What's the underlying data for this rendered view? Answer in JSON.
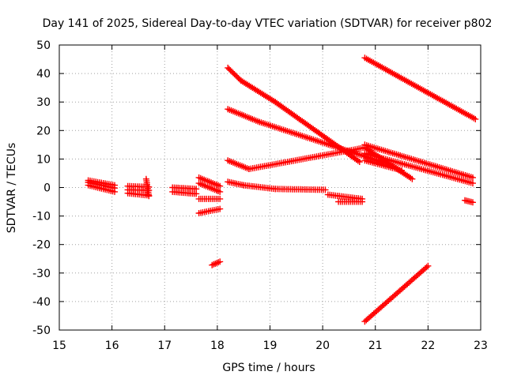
{
  "chart_data": {
    "type": "scatter",
    "title": "Day 141 of 2025, Sidereal Day-to-day VTEC variation (SDTVAR) for receiver p802",
    "xlabel": "GPS time / hours",
    "ylabel": "SDTVAR / TECUs",
    "xlim": [
      15,
      23
    ],
    "ylim": [
      -50,
      50
    ],
    "xticks": [
      "15",
      "16",
      "17",
      "18",
      "19",
      "20",
      "21",
      "22",
      "23"
    ],
    "yticks": [
      "-50",
      "-40",
      "-30",
      "-20",
      "-10",
      "0",
      "10",
      "20",
      "30",
      "40",
      "50"
    ],
    "grid": true,
    "marker": "plus",
    "color": "#ff0000",
    "segments": [
      {
        "x": [
          15.55,
          16.05
        ],
        "y": [
          2.5,
          0.8
        ]
      },
      {
        "x": [
          15.55,
          16.05
        ],
        "y": [
          1.8,
          -0.2
        ]
      },
      {
        "x": [
          15.55,
          16.05
        ],
        "y": [
          0.8,
          -1.5
        ]
      },
      {
        "x": [
          16.3,
          16.7
        ],
        "y": [
          0.5,
          0.2
        ]
      },
      {
        "x": [
          16.3,
          16.7
        ],
        "y": [
          -0.8,
          -1.0
        ]
      },
      {
        "x": [
          16.3,
          16.7
        ],
        "y": [
          -2.0,
          -2.8
        ]
      },
      {
        "x": [
          16.65,
          16.7
        ],
        "y": [
          3.0,
          -3.0
        ]
      },
      {
        "x": [
          17.15,
          17.6
        ],
        "y": [
          0.0,
          -0.5
        ]
      },
      {
        "x": [
          17.15,
          17.6
        ],
        "y": [
          -1.5,
          -2.2
        ]
      },
      {
        "x": [
          17.65,
          18.05
        ],
        "y": [
          3.5,
          0.5
        ]
      },
      {
        "x": [
          17.65,
          18.05
        ],
        "y": [
          1.5,
          -1.5
        ]
      },
      {
        "x": [
          17.65,
          18.05
        ],
        "y": [
          -4.0,
          -4.0
        ]
      },
      {
        "x": [
          17.65,
          18.05
        ],
        "y": [
          -9.0,
          -7.5
        ]
      },
      {
        "x": [
          17.9,
          18.05
        ],
        "y": [
          -27.2,
          -26.0
        ]
      },
      {
        "x": [
          18.2,
          18.45
        ],
        "y": [
          42.0,
          37.5
        ]
      },
      {
        "x": [
          18.45,
          19.1
        ],
        "y": [
          37.5,
          30.0
        ]
      },
      {
        "x": [
          19.1,
          20.7
        ],
        "y": [
          30.0,
          9.0
        ]
      },
      {
        "x": [
          18.2,
          18.8
        ],
        "y": [
          27.5,
          23.0
        ]
      },
      {
        "x": [
          18.8,
          21.2
        ],
        "y": [
          23.0,
          8.5
        ]
      },
      {
        "x": [
          18.2,
          18.6
        ],
        "y": [
          9.5,
          6.5
        ]
      },
      {
        "x": [
          18.6,
          20.8
        ],
        "y": [
          6.5,
          14.0
        ]
      },
      {
        "x": [
          20.8,
          21.7
        ],
        "y": [
          14.0,
          3.0
        ]
      },
      {
        "x": [
          18.2,
          18.5
        ],
        "y": [
          2.0,
          0.8
        ]
      },
      {
        "x": [
          18.5,
          19.1
        ],
        "y": [
          0.8,
          -0.5
        ]
      },
      {
        "x": [
          19.1,
          20.05
        ],
        "y": [
          -0.5,
          -0.8
        ]
      },
      {
        "x": [
          20.1,
          20.75
        ],
        "y": [
          -2.5,
          -4.0
        ]
      },
      {
        "x": [
          20.3,
          20.75
        ],
        "y": [
          -5.0,
          -5.0
        ]
      },
      {
        "x": [
          20.8,
          22.9
        ],
        "y": [
          45.5,
          24.0
        ]
      },
      {
        "x": [
          20.8,
          22.85
        ],
        "y": [
          15.0,
          3.5
        ]
      },
      {
        "x": [
          20.8,
          22.85
        ],
        "y": [
          12.0,
          1.5
        ]
      },
      {
        "x": [
          20.8,
          21.5
        ],
        "y": [
          9.5,
          6.0
        ]
      },
      {
        "x": [
          22.7,
          22.85
        ],
        "y": [
          -4.5,
          -5.2
        ]
      },
      {
        "x": [
          20.8,
          22.0
        ],
        "y": [
          -47.0,
          -27.5
        ]
      }
    ]
  }
}
